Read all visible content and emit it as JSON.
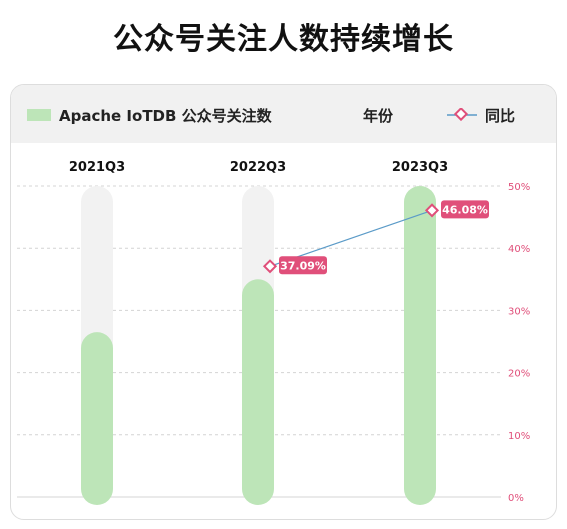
{
  "page_title": "公众号关注人数持续增长",
  "legend": {
    "bar_label": "Apache IoTDB 公众号关注数",
    "year_label": "年份",
    "line_label": "同比"
  },
  "colors": {
    "bar": "#bde5b8",
    "bar_track": "#f2f2f2",
    "line": "#5b9bc8",
    "marker": "#e04f7a",
    "right_axis_text": "#e04f7a"
  },
  "chart_data": {
    "type": "bar",
    "categories": [
      "2021Q3",
      "2022Q3",
      "2023Q3"
    ],
    "series": [
      {
        "type": "bar",
        "values": [
          0.53,
          0.7,
          1.0
        ]
      },
      {
        "name": "同比",
        "type": "line",
        "values": [
          null,
          37.09,
          46.08
        ],
        "labels": [
          "",
          "37.09%",
          "46.08%"
        ]
      }
    ],
    "right_axis": {
      "ylim": [
        0,
        50
      ],
      "ticks": [
        "0%",
        "10%",
        "20%",
        "30%",
        "40%",
        "50%"
      ]
    },
    "grid": true,
    "legend_position": "top"
  }
}
